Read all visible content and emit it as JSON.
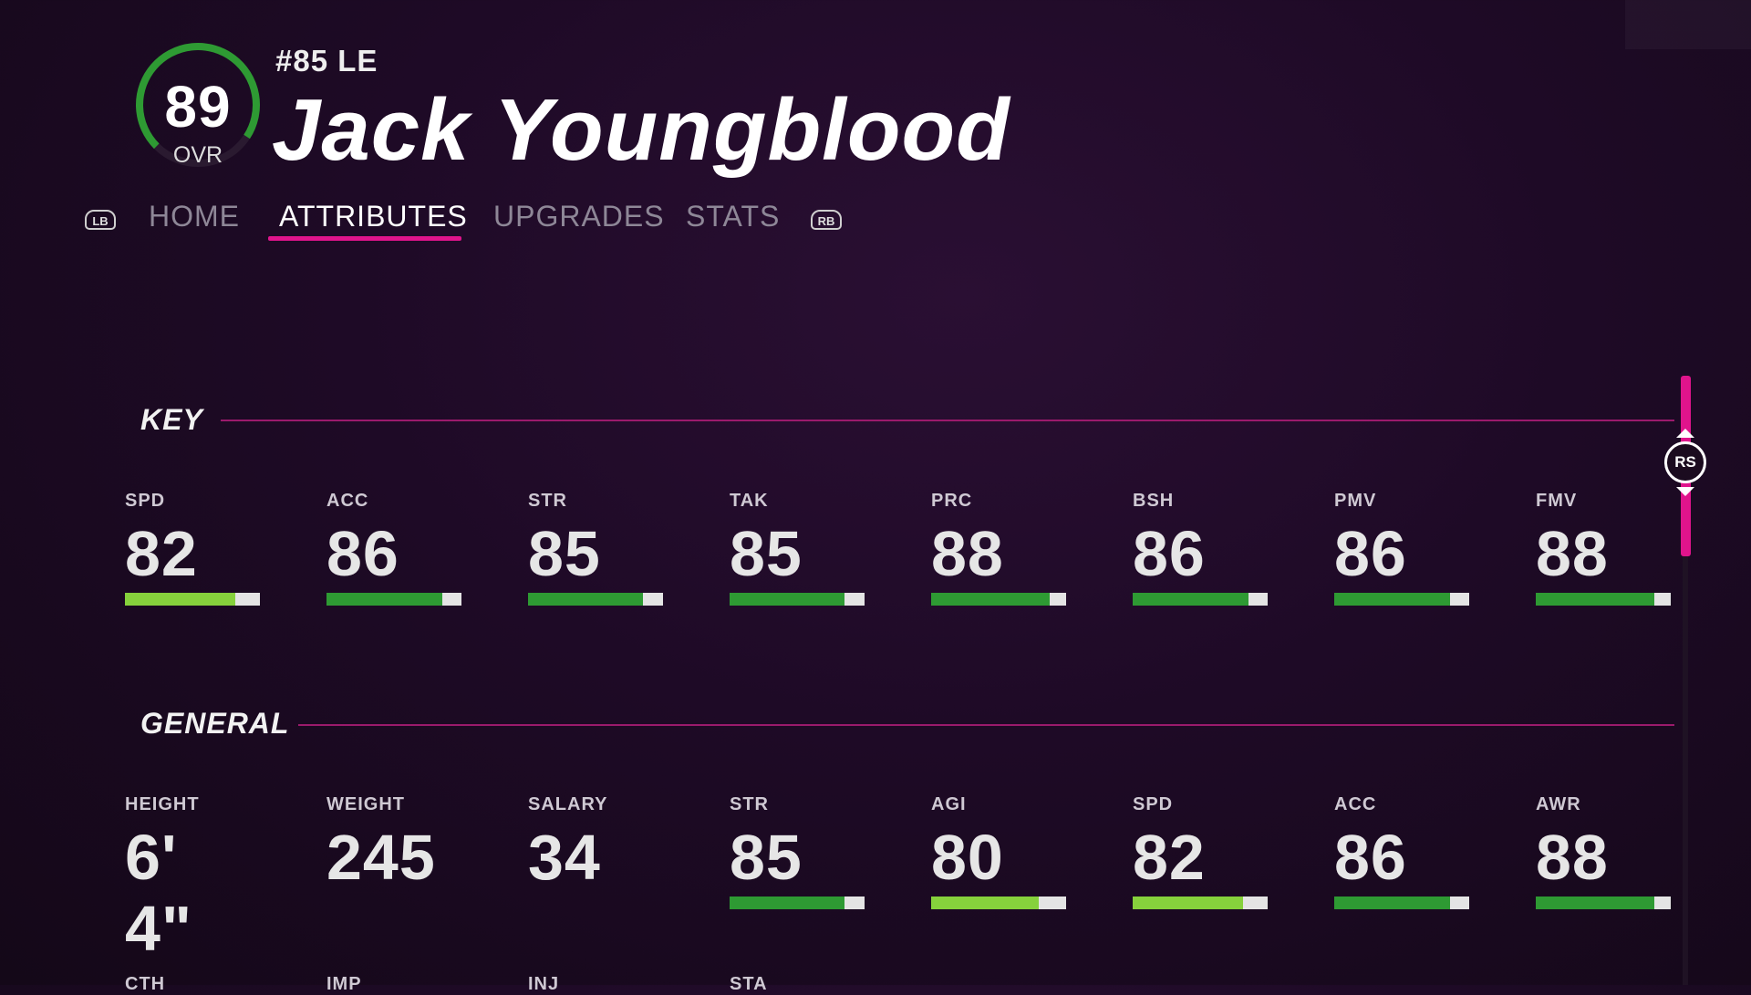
{
  "player": {
    "ovr": "89",
    "ovr_label": "OVR",
    "ovr_fraction": 0.89,
    "jersey": "#85 LE",
    "name": "Jack Youngblood"
  },
  "tabs": {
    "lb_hint": "LB",
    "rb_hint": "RB",
    "items": [
      {
        "label": "HOME",
        "active": false
      },
      {
        "label": "ATTRIBUTES",
        "active": true
      },
      {
        "label": "UPGRADES",
        "active": false
      },
      {
        "label": "STATS",
        "active": false
      }
    ]
  },
  "sections": {
    "key": {
      "title": "KEY",
      "attributes": [
        {
          "label": "SPD",
          "value": "82",
          "bar_level": 0.82,
          "bar_color": "#86d13c"
        },
        {
          "label": "ACC",
          "value": "86",
          "bar_level": 0.86,
          "bar_color": "#2e9a33"
        },
        {
          "label": "STR",
          "value": "85",
          "bar_level": 0.85,
          "bar_color": "#2e9a33"
        },
        {
          "label": "TAK",
          "value": "85",
          "bar_level": 0.85,
          "bar_color": "#2e9a33"
        },
        {
          "label": "PRC",
          "value": "88",
          "bar_level": 0.88,
          "bar_color": "#2e9a33"
        },
        {
          "label": "BSH",
          "value": "86",
          "bar_level": 0.86,
          "bar_color": "#2e9a33"
        },
        {
          "label": "PMV",
          "value": "86",
          "bar_level": 0.86,
          "bar_color": "#2e9a33"
        },
        {
          "label": "FMV",
          "value": "88",
          "bar_level": 0.88,
          "bar_color": "#2e9a33"
        }
      ]
    },
    "general": {
      "title": "GENERAL",
      "attributes": [
        {
          "label": "HEIGHT",
          "value": "6' 4\""
        },
        {
          "label": "WEIGHT",
          "value": "245"
        },
        {
          "label": "SALARY",
          "value": "34"
        },
        {
          "label": "STR",
          "value": "85",
          "bar_level": 0.85,
          "bar_color": "#2e9a33"
        },
        {
          "label": "AGI",
          "value": "80",
          "bar_level": 0.8,
          "bar_color": "#86d13c"
        },
        {
          "label": "SPD",
          "value": "82",
          "bar_level": 0.82,
          "bar_color": "#86d13c"
        },
        {
          "label": "ACC",
          "value": "86",
          "bar_level": 0.86,
          "bar_color": "#2e9a33"
        },
        {
          "label": "AWR",
          "value": "88",
          "bar_level": 0.88,
          "bar_color": "#2e9a33"
        }
      ]
    },
    "partial_row_labels": [
      "CTH",
      "IMP",
      "INJ",
      "STA"
    ]
  },
  "scroll": {
    "hint": "RS"
  },
  "colors": {
    "accent": "#e0148c",
    "ovr_ring": "#2e9a33",
    "bar_track": "#e4e4e4"
  }
}
